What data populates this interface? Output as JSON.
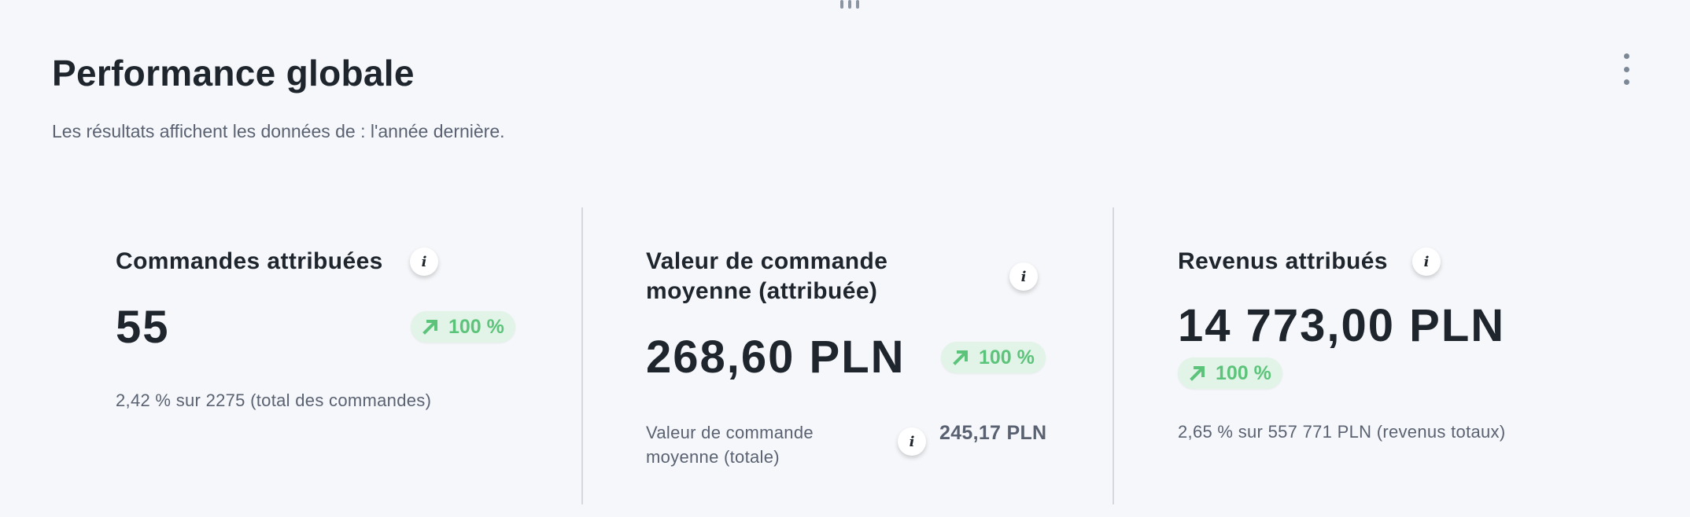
{
  "header": {
    "title": "Performance globale",
    "subtitle": "Les résultats affichent les données de : l'année dernière."
  },
  "colors": {
    "background": "#f5f7fa",
    "text": "#1f252d",
    "positive": "#5cc47a",
    "positive_bg": "#e2f3e7"
  },
  "metrics": [
    {
      "label": "Commandes attribuées",
      "value": "55",
      "trend": "100 %",
      "trend_direction": "up",
      "footer": "2,42 % sur 2275 (total des commandes)"
    },
    {
      "label_line1": "Valeur de commande",
      "label_line2": "moyenne (attribuée)",
      "value": "268,60 PLN",
      "trend": "100 %",
      "trend_direction": "up",
      "secondary_label_line1": "Valeur de commande",
      "secondary_label_line2": "moyenne (totale)",
      "secondary_value": "245,17 PLN"
    },
    {
      "label": "Revenus attribués",
      "value": "14 773,00 PLN",
      "trend": "100 %",
      "trend_direction": "up",
      "footer": "2,65 % sur 557 771 PLN (revenus totaux)"
    }
  ],
  "icons": {
    "info": "i"
  }
}
